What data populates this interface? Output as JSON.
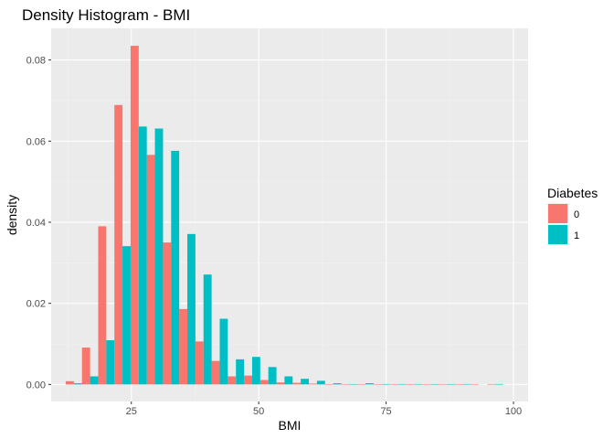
{
  "chart_data": {
    "type": "bar",
    "title": "Density Histogram - BMI",
    "xlabel": "BMI",
    "ylabel": "density",
    "xlim": [
      9.27,
      102.87
    ],
    "ylim": [
      -0.0042,
      0.0878
    ],
    "x_ticks": [
      25,
      50,
      75,
      100
    ],
    "x_tick_labels": [
      "25",
      "50",
      "75",
      "100"
    ],
    "y_ticks": [
      0.0,
      0.02,
      0.04,
      0.06,
      0.08
    ],
    "y_tick_labels": [
      "0.00",
      "0.02",
      "0.04",
      "0.06",
      "0.08"
    ],
    "bin_width": 3.18,
    "grid": true,
    "legend": {
      "title": "Diabetes",
      "position": "right"
    },
    "bin_centers": [
      13.73,
      16.91,
      20.09,
      23.27,
      26.45,
      29.63,
      32.81,
      35.99,
      39.17,
      42.35,
      45.53,
      48.71,
      51.89,
      55.07,
      58.25,
      61.43,
      64.61,
      67.79,
      70.97,
      74.15,
      77.33,
      80.51,
      83.69,
      86.87,
      90.05,
      93.23,
      96.41
    ],
    "series": [
      {
        "name": "0",
        "color": "#f8766d",
        "values": [
          0.0008,
          0.0091,
          0.039,
          0.0689,
          0.0835,
          0.0566,
          0.035,
          0.0186,
          0.0106,
          0.0058,
          0.002,
          0.0022,
          0.0011,
          0.0005,
          0.0004,
          0.0002,
          0.0001,
          0.0001,
          0.0001,
          0.0001,
          0.0001,
          0.0001,
          0.0001,
          0.0001,
          0.0001,
          0.0001,
          0.0001
        ]
      },
      {
        "name": "1",
        "color": "#00bfc4",
        "values": [
          0.0003,
          0.002,
          0.0109,
          0.0341,
          0.0636,
          0.0631,
          0.0576,
          0.0371,
          0.0271,
          0.0162,
          0.0062,
          0.0068,
          0.0043,
          0.002,
          0.0014,
          0.0009,
          0.0003,
          0.0001,
          0.0003,
          0.0001,
          0.0001,
          0.0001,
          0.0001,
          0.0001,
          0.0001,
          0.0,
          0.0001
        ]
      }
    ]
  }
}
